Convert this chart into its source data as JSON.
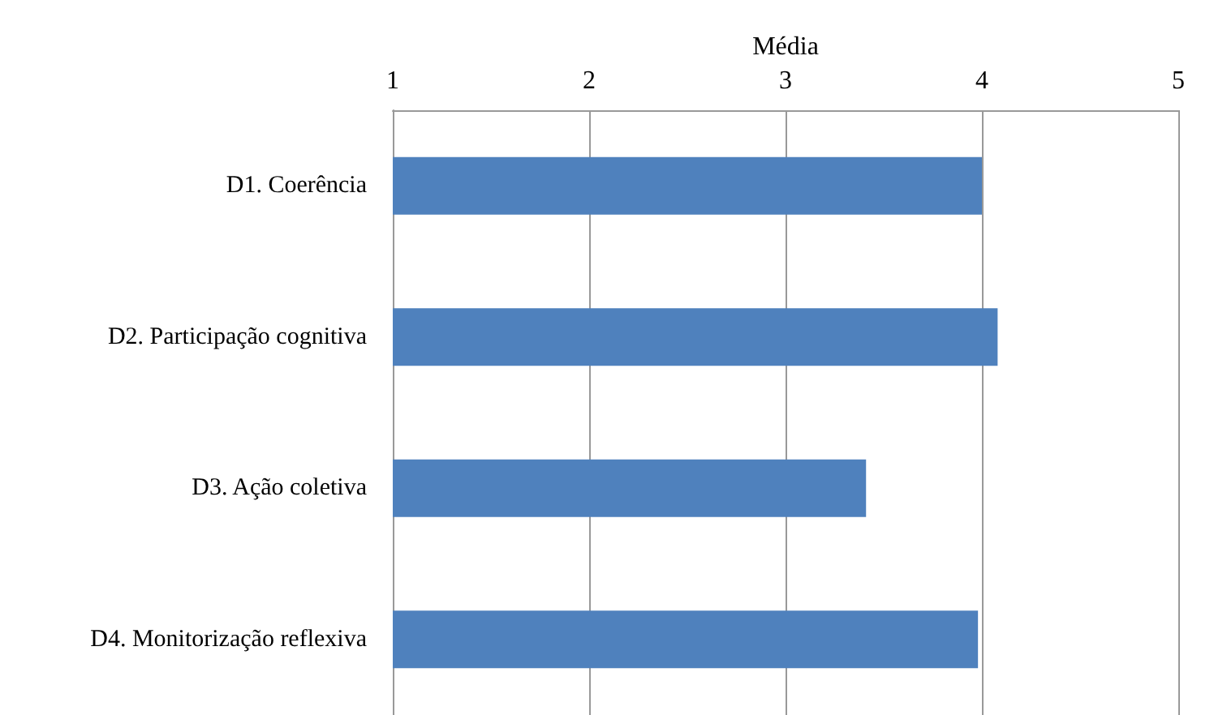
{
  "chart_data": {
    "type": "bar",
    "orientation": "horizontal",
    "xlabel": "Média",
    "categories": [
      "D1. Coerência",
      "D2. Participação cognitiva",
      "D3. Ação coletiva",
      "D4. Monitorização reflexiva"
    ],
    "values": [
      4.0,
      4.08,
      3.41,
      3.98
    ],
    "color": "#4f81bd",
    "xlim": [
      1,
      5
    ],
    "xticks": [
      1,
      2,
      3,
      4,
      5
    ],
    "grid": "x"
  }
}
